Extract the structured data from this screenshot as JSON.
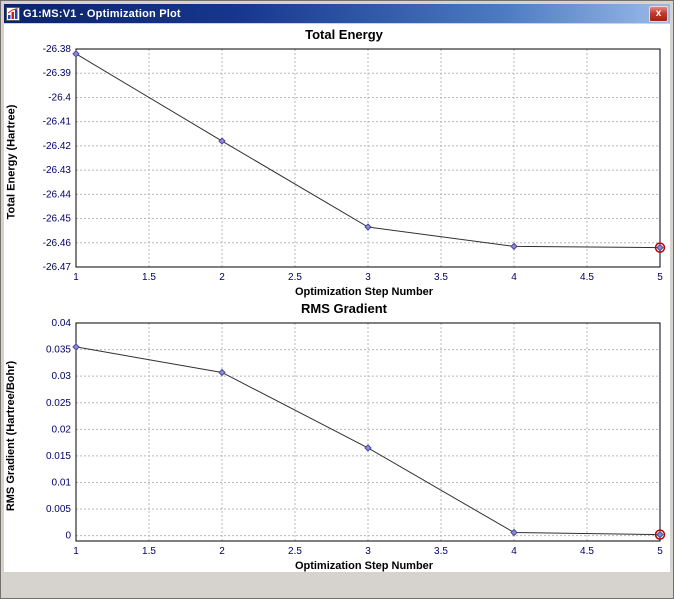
{
  "window": {
    "title": "G1:MS:V1 - Optimization Plot",
    "close_glyph": "x"
  },
  "chart_data": [
    {
      "type": "line",
      "title": "Total Energy",
      "xlabel": "Optimization Step Number",
      "ylabel": "Total Energy (Hartree)",
      "x": [
        1,
        2,
        3,
        4,
        5
      ],
      "values": [
        -26.382,
        -26.418,
        -26.4535,
        -26.4615,
        -26.462
      ],
      "xlim": [
        1,
        5
      ],
      "ylim": [
        -26.47,
        -26.38
      ],
      "xticks": [
        1,
        1.5,
        2,
        2.5,
        3,
        3.5,
        4,
        4.5,
        5
      ],
      "xtick_labels": [
        "1",
        "1.5",
        "2",
        "2.5",
        "3",
        "3.5",
        "4",
        "4.5",
        "5"
      ],
      "yticks": [
        -26.38,
        -26.39,
        -26.4,
        -26.41,
        -26.42,
        -26.43,
        -26.44,
        -26.45,
        -26.46,
        -26.47
      ],
      "ytick_labels": [
        "-26.38",
        "-26.39",
        "-26.4",
        "-26.41",
        "-26.42",
        "-26.43",
        "-26.44",
        "-26.45",
        "-26.46",
        "-26.47"
      ],
      "grid": true,
      "legend": "none",
      "marker_color": "#8c8cd0",
      "marker_edge": "#4646a0",
      "line_color": "#303030",
      "highlight_color": "#c00000",
      "highlight_last": true
    },
    {
      "type": "line",
      "title": "RMS Gradient",
      "xlabel": "Optimization Step Number",
      "ylabel": "RMS Gradient (Hartree/Bohr)",
      "x": [
        1,
        2,
        3,
        4,
        5
      ],
      "values": [
        0.0355,
        0.0307,
        0.0165,
        0.0006,
        0.0002
      ],
      "xlim": [
        1,
        5
      ],
      "ylim": [
        -0.001,
        0.04
      ],
      "xticks": [
        1,
        1.5,
        2,
        2.5,
        3,
        3.5,
        4,
        4.5,
        5
      ],
      "xtick_labels": [
        "1",
        "1.5",
        "2",
        "2.5",
        "3",
        "3.5",
        "4",
        "4.5",
        "5"
      ],
      "yticks": [
        0.04,
        0.035,
        0.03,
        0.025,
        0.02,
        0.015,
        0.01,
        0.005,
        0
      ],
      "ytick_labels": [
        "0.04",
        "0.035",
        "0.03",
        "0.025",
        "0.02",
        "0.015",
        "0.01",
        "0.005",
        "0"
      ],
      "grid": true,
      "legend": "none",
      "marker_color": "#8c8cd0",
      "marker_edge": "#4646a0",
      "line_color": "#303030",
      "highlight_color": "#c00000",
      "highlight_last": true
    }
  ]
}
